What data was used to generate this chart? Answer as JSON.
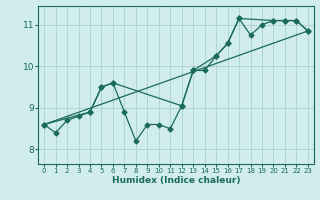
{
  "background_color": "#d0ecec",
  "grid_color": "#b0d4d4",
  "line_color": "#1a6b5a",
  "xlabel": "Humidex (Indice chaleur)",
  "xlim": [
    -0.5,
    23.5
  ],
  "ylim": [
    7.65,
    11.45
  ],
  "yticks": [
    8,
    9,
    10,
    11
  ],
  "xticks": [
    0,
    1,
    2,
    3,
    4,
    5,
    6,
    7,
    8,
    9,
    10,
    11,
    12,
    13,
    14,
    15,
    16,
    17,
    18,
    19,
    20,
    21,
    22,
    23
  ],
  "series1_x": [
    0,
    1,
    2,
    3,
    4,
    5,
    6,
    7,
    8,
    9,
    10,
    11,
    12,
    13,
    14,
    15,
    16,
    17,
    18,
    19,
    20,
    21,
    22,
    23
  ],
  "series1_y": [
    8.6,
    8.4,
    8.7,
    8.8,
    8.9,
    9.5,
    9.6,
    8.9,
    8.2,
    8.6,
    8.6,
    8.5,
    9.05,
    9.9,
    9.9,
    10.25,
    10.55,
    11.15,
    10.75,
    11.0,
    11.1,
    11.1,
    11.1,
    10.85
  ],
  "series2_x": [
    0,
    4,
    5,
    6,
    12,
    13,
    15,
    16,
    17,
    20,
    21,
    22,
    23
  ],
  "series2_y": [
    8.6,
    8.9,
    9.5,
    9.6,
    9.05,
    9.9,
    10.25,
    10.55,
    11.15,
    11.1,
    11.1,
    11.1,
    10.85
  ],
  "series3_x": [
    0,
    23
  ],
  "series3_y": [
    8.6,
    10.85
  ]
}
